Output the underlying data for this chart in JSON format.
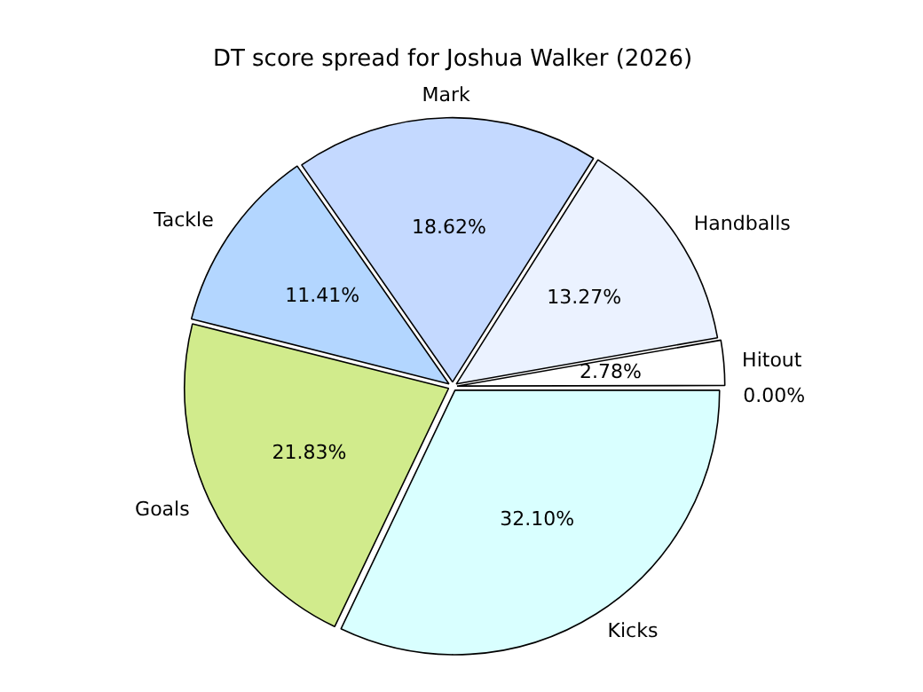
{
  "chart_data": {
    "type": "pie",
    "title": "DT score spread for Joshua Walker (2026)",
    "categories": [
      "Kicks",
      "Goals",
      "Tackle",
      "Mark",
      "Handballs",
      "Hitout",
      null
    ],
    "values": [
      32.1,
      21.83,
      11.41,
      18.62,
      13.27,
      2.78,
      0
    ],
    "colors": [
      "#d9ffff",
      "#d1eb8c",
      "#b3d6ff",
      "#c4d9ff",
      "#ebf2ff",
      "#ffffff",
      "#ffffff"
    ],
    "value_labels": [
      "32.10%",
      "21.83%",
      "11.41%",
      "18.62%",
      "13.27%",
      "2.78%",
      "0.00%"
    ],
    "legend": false
  }
}
